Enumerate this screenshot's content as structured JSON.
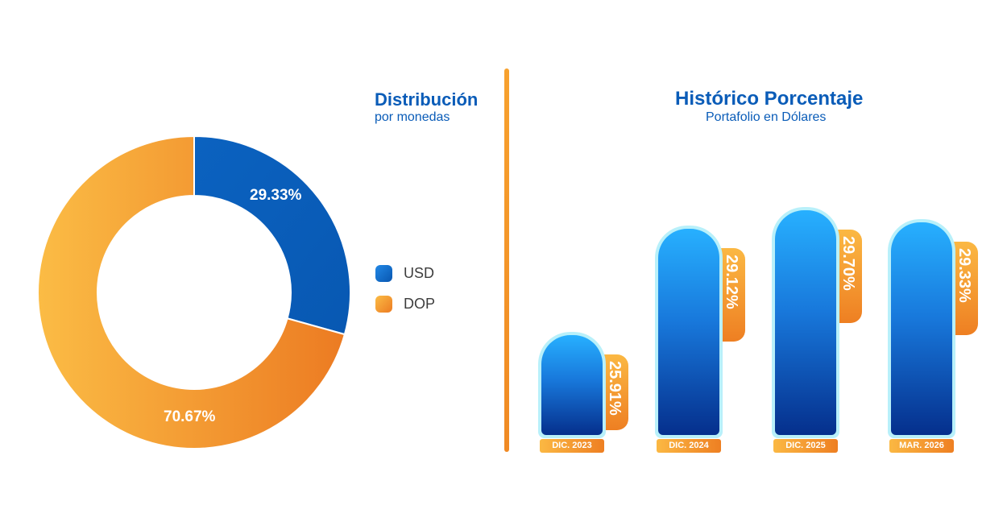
{
  "chart_data": [
    {
      "type": "pie",
      "title": "Distribución",
      "subtitle": "por monedas",
      "slices": [
        {
          "label": "USD",
          "value": 29.33,
          "display": "29.33%",
          "color": "#0a5fba"
        },
        {
          "label": "DOP",
          "value": 70.67,
          "display": "70.67%",
          "color": "#f5a030"
        }
      ],
      "legend": "right"
    },
    {
      "type": "bar",
      "title": "Histórico Porcentaje",
      "subtitle": "Portafolio en Dólares",
      "categories": [
        "DIC. 2023",
        "DIC. 2024",
        "DIC. 2025",
        "MAR. 2026"
      ],
      "values": [
        25.91,
        29.12,
        29.7,
        29.33
      ],
      "labels": [
        "25.91%",
        "29.12%",
        "29.70%",
        "29.33%"
      ],
      "bar_color": "#1878db",
      "tab_color": "#f5a030"
    }
  ],
  "colors": {
    "accent_blue": "#0a5cb8",
    "accent_orange": "#f08a24"
  }
}
